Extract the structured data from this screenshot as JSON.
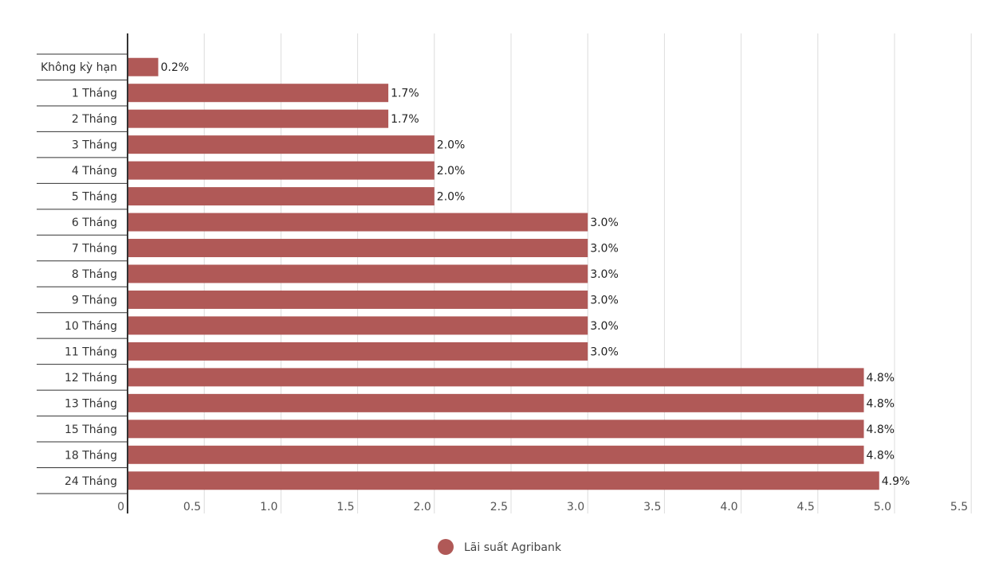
{
  "chart_data": {
    "type": "bar",
    "orientation": "horizontal",
    "categories": [
      "Không kỳ hạn",
      "1 Tháng",
      "2 Tháng",
      "3 Tháng",
      "4 Tháng",
      "5 Tháng",
      "6 Tháng",
      "7 Tháng",
      "8 Tháng",
      "9 Tháng",
      "10 Tháng",
      "11 Tháng",
      "12 Tháng",
      "13 Tháng",
      "15 Tháng",
      "18 Tháng",
      "24 Tháng"
    ],
    "series": [
      {
        "name": "Lãi suất Agribank",
        "color": "#b05957",
        "values": [
          0.2,
          1.7,
          1.7,
          2.0,
          2.0,
          2.0,
          3.0,
          3.0,
          3.0,
          3.0,
          3.0,
          3.0,
          4.8,
          4.8,
          4.8,
          4.8,
          4.9
        ]
      }
    ],
    "data_labels": [
      "0.2%",
      "1.7%",
      "1.7%",
      "2.0%",
      "2.0%",
      "2.0%",
      "3.0%",
      "3.0%",
      "3.0%",
      "3.0%",
      "3.0%",
      "3.0%",
      "4.8%",
      "4.8%",
      "4.8%",
      "4.8%",
      "4.9%"
    ],
    "x_ticks": [
      "0",
      "0.5",
      "1.0",
      "1.5",
      "2.0",
      "2.5",
      "3.0",
      "3.5",
      "4.0",
      "4.5",
      "5.0",
      "5.5"
    ],
    "xlim": [
      0,
      5.5
    ],
    "grid": true,
    "legend": {
      "position": "bottom-center",
      "entries": [
        "Lãi suất Agribank"
      ]
    },
    "title": "",
    "xlabel": "",
    "ylabel": ""
  }
}
